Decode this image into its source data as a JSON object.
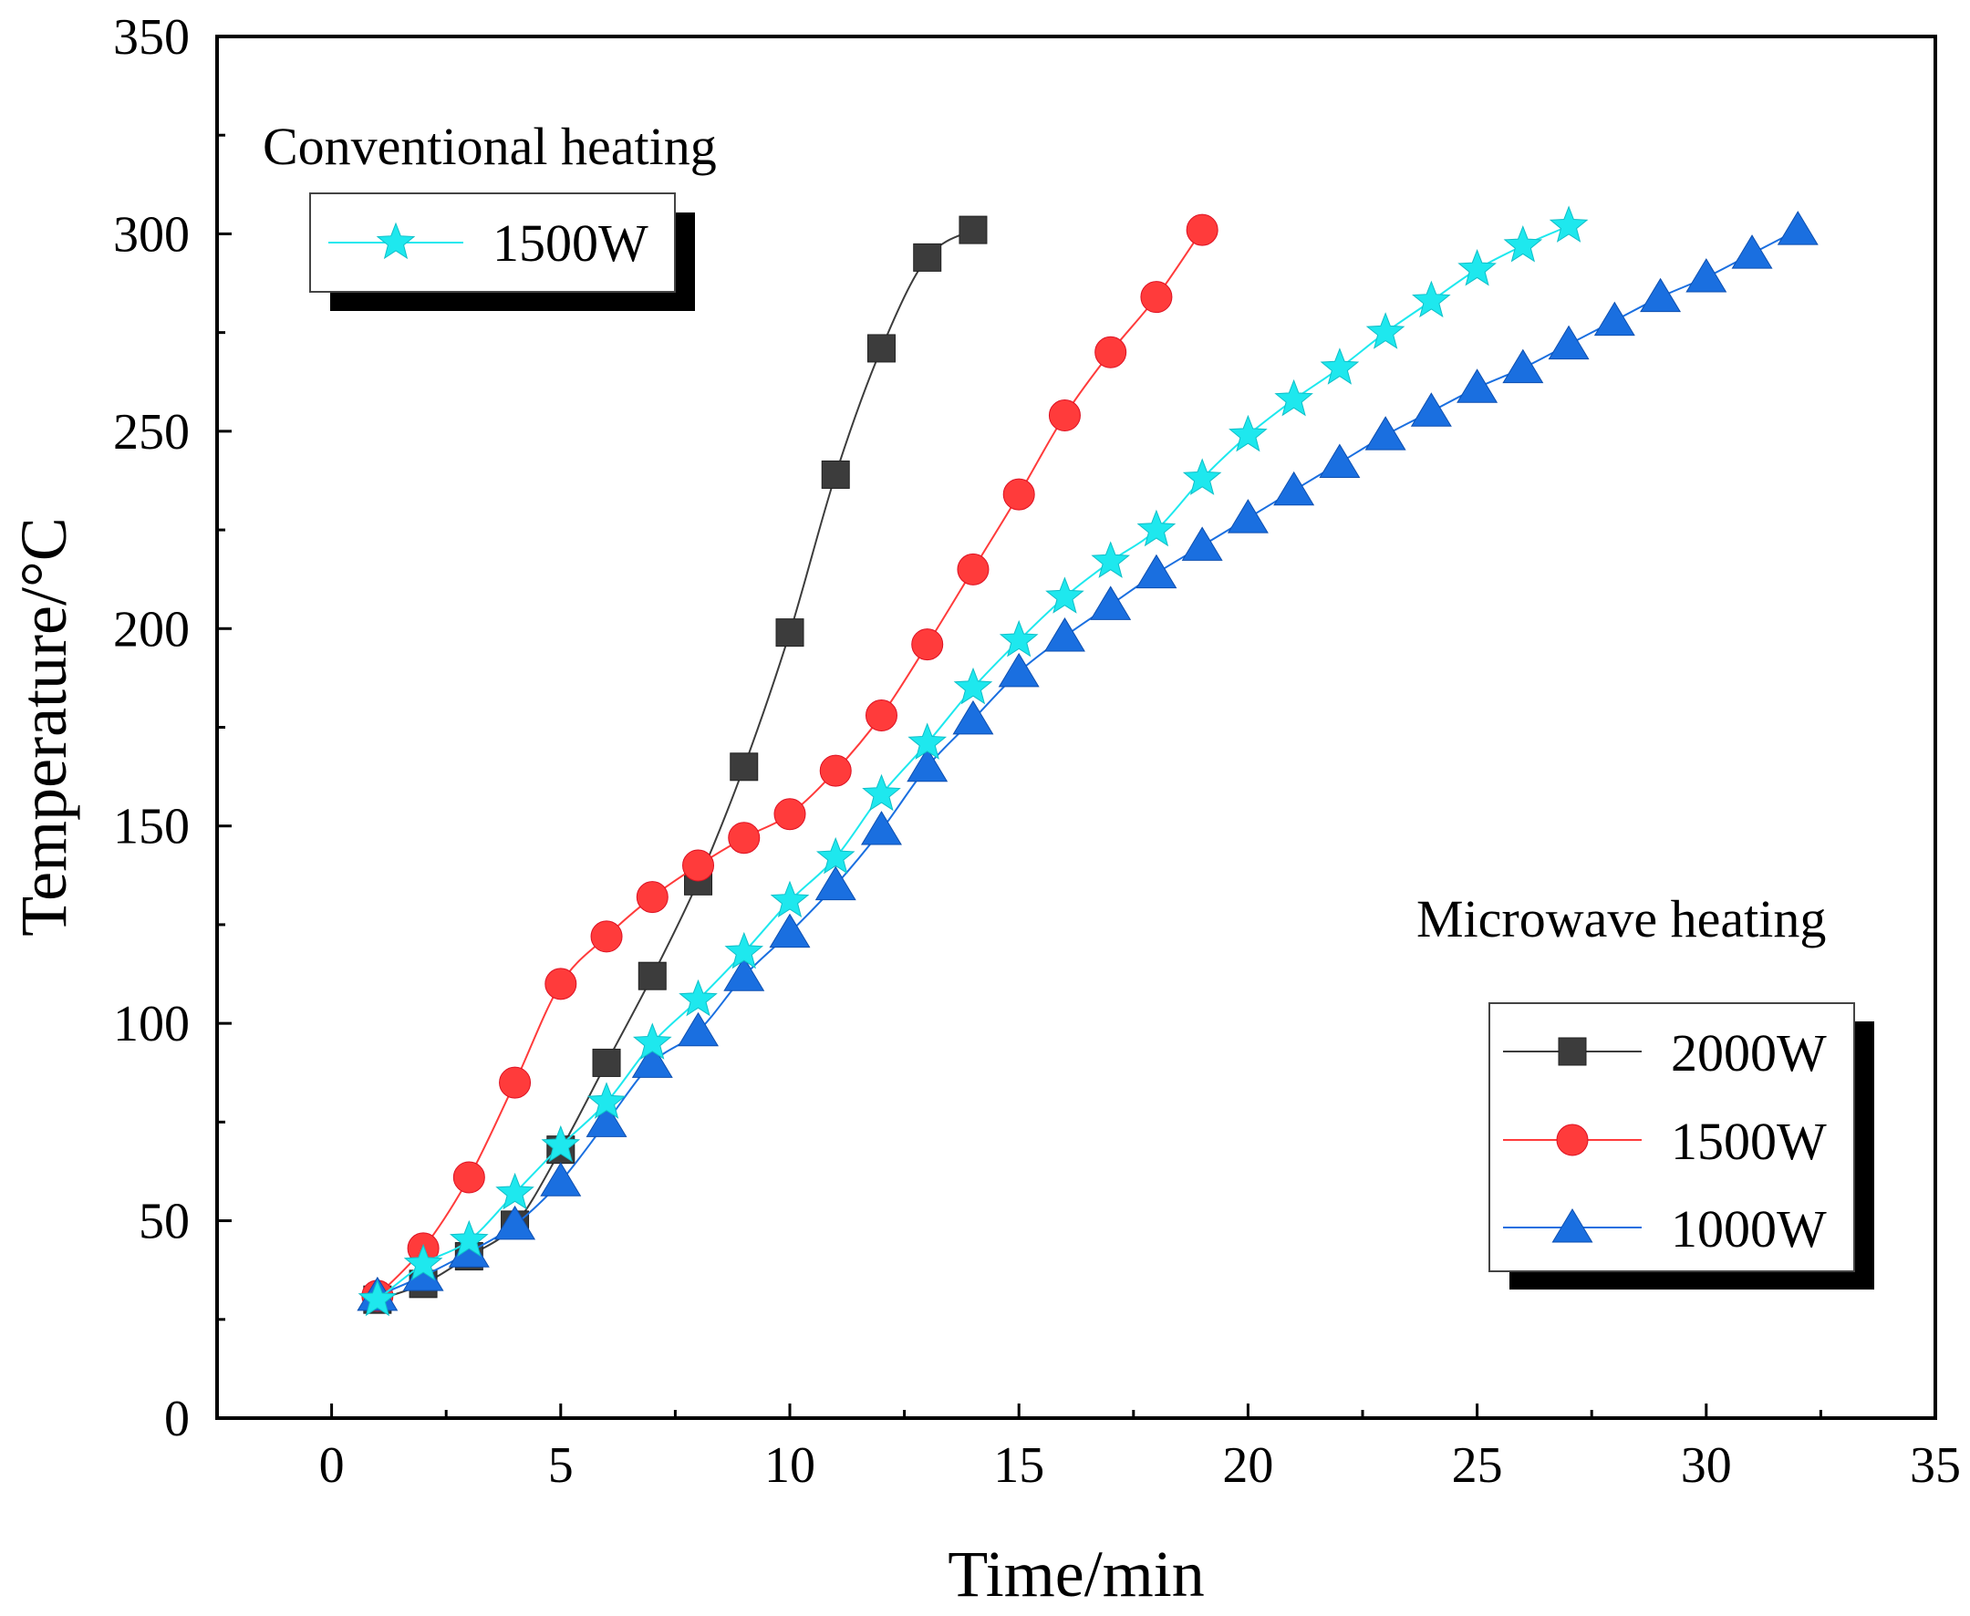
{
  "chart_data": {
    "type": "line",
    "title": "",
    "xlabel": "Time/min",
    "ylabel": "Temperature/°C",
    "xlim": [
      -2.5,
      35
    ],
    "ylim": [
      0,
      350
    ],
    "xticks": [
      0,
      5,
      10,
      15,
      20,
      25,
      30,
      35
    ],
    "yticks": [
      0,
      50,
      100,
      150,
      200,
      250,
      300,
      350
    ],
    "x_tick_labels": [
      "0",
      "5",
      "10",
      "15",
      "20",
      "25",
      "30",
      "35"
    ],
    "y_tick_labels": [
      "0",
      "50",
      "100",
      "150",
      "200",
      "250",
      "300",
      "350"
    ],
    "grid": false,
    "annotations": {
      "conventional": "Conventional heating",
      "microwave": "Microwave heating"
    },
    "legends": {
      "conventional": {
        "placement": "top-left",
        "entries": [
          "1500W"
        ]
      },
      "microwave": {
        "placement": "bottom-right",
        "entries": [
          "2000W",
          "1500W",
          "1000W"
        ]
      }
    },
    "series": [
      {
        "name": "2000W",
        "group": "Microwave heating",
        "marker": "square",
        "color": "#3c3c3c",
        "x": [
          1,
          2,
          3,
          4,
          5,
          6,
          7,
          8,
          9,
          10,
          11,
          12,
          13,
          14
        ],
        "values": [
          30,
          34,
          41,
          49,
          68,
          90,
          112,
          136,
          165,
          199,
          239,
          271,
          294,
          301
        ]
      },
      {
        "name": "1500W",
        "group": "Microwave heating",
        "marker": "circle",
        "color": "#ff3b3b",
        "x": [
          1,
          2,
          3,
          4,
          5,
          6,
          7,
          8,
          9,
          10,
          11,
          12,
          13,
          14,
          15,
          16,
          17,
          18,
          19
        ],
        "values": [
          31,
          43,
          61,
          85,
          110,
          122,
          132,
          140,
          147,
          153,
          164,
          178,
          196,
          215,
          234,
          254,
          270,
          284,
          301
        ]
      },
      {
        "name": "1000W",
        "group": "Microwave heating",
        "marker": "triangle",
        "color": "#1a6fe0",
        "x": [
          1,
          2,
          3,
          4,
          5,
          6,
          7,
          8,
          9,
          10,
          11,
          12,
          13,
          14,
          15,
          16,
          17,
          18,
          19,
          20,
          21,
          22,
          23,
          24,
          25,
          26,
          27,
          28,
          29,
          30,
          31,
          32
        ],
        "values": [
          31,
          36,
          42,
          49,
          60,
          75,
          90,
          98,
          112,
          123,
          135,
          149,
          165,
          177,
          189,
          198,
          206,
          214,
          221,
          228,
          235,
          242,
          249,
          255,
          261,
          266,
          272,
          278,
          284,
          289,
          295,
          301
        ]
      },
      {
        "name": "1500W",
        "group": "Conventional heating",
        "marker": "star",
        "color": "#1ee8ee",
        "x": [
          1,
          2,
          3,
          4,
          5,
          6,
          7,
          8,
          9,
          10,
          11,
          12,
          13,
          14,
          15,
          16,
          17,
          18,
          19,
          20,
          21,
          22,
          23,
          24,
          25,
          26,
          27
        ],
        "values": [
          30,
          39,
          45,
          57,
          69,
          80,
          95,
          106,
          118,
          131,
          142,
          158,
          171,
          185,
          197,
          208,
          217,
          225,
          238,
          249,
          258,
          266,
          275,
          283,
          291,
          297,
          302
        ]
      }
    ]
  }
}
